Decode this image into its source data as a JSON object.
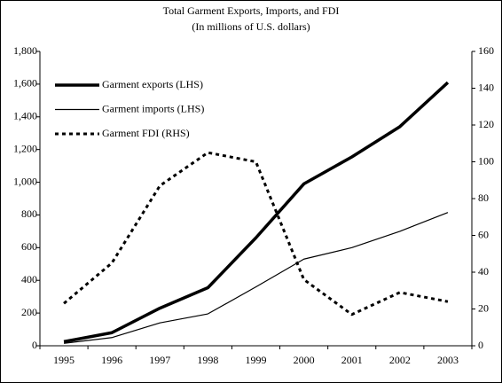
{
  "chart_data": {
    "type": "line",
    "title": "Total Garment Exports, Imports, and FDI",
    "subtitle": "(In millions of U.S. dollars)",
    "categories": [
      "1995",
      "1996",
      "1997",
      "1998",
      "1999",
      "2000",
      "2001",
      "2002",
      "2003"
    ],
    "series": [
      {
        "name": "Garment exports (LHS)",
        "color": "#000000",
        "width": 3.5,
        "dash": false,
        "values": [
          25,
          80,
          230,
          355,
          660,
          990,
          1155,
          1340,
          1610
        ]
      },
      {
        "name": "Garment imports (LHS)",
        "color": "#000000",
        "width": 1.2,
        "dash": false,
        "values": [
          15,
          50,
          140,
          195,
          360,
          530,
          600,
          700,
          815
        ]
      },
      {
        "name": "Garment FDI (RHS)",
        "color": "#000000",
        "width": 3,
        "dash": true,
        "axis": "y2",
        "values": [
          23,
          45,
          87,
          105,
          100,
          36,
          17,
          29,
          24
        ]
      }
    ],
    "ylim": [
      0,
      1800
    ],
    "yticks": [
      0,
      200,
      400,
      600,
      800,
      {
        "value": 1000,
        "label": "1,000"
      },
      {
        "value": 1200,
        "label": "1,200"
      },
      {
        "value": 1400,
        "label": "1,400"
      },
      {
        "value": 1600,
        "label": "1,600"
      },
      {
        "value": 1800,
        "label": "1,800"
      }
    ],
    "y2lim": [
      0,
      160
    ],
    "y2ticks": [
      0,
      20,
      40,
      60,
      80,
      100,
      120,
      140,
      160
    ],
    "legend": "upper left"
  }
}
